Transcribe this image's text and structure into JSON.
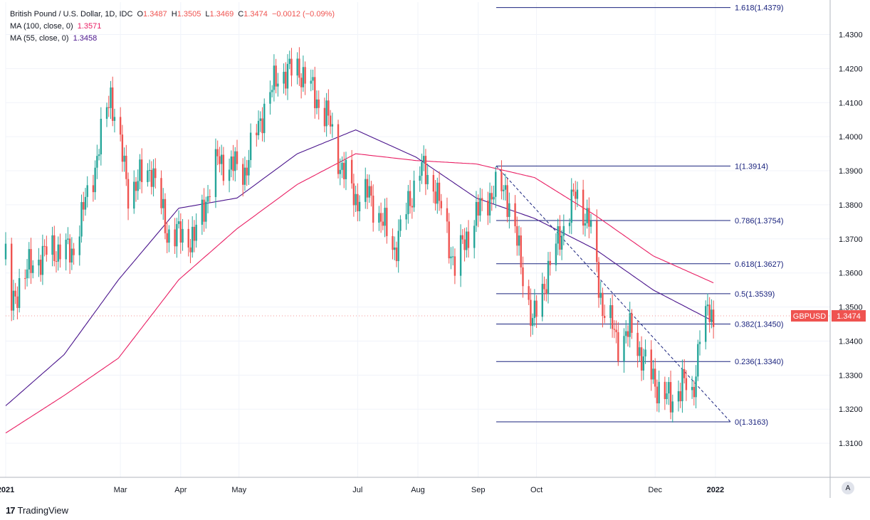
{
  "legend": {
    "symbol": "British Pound / U.S. Dollar, 1D, IDC",
    "o_label": "O",
    "o": "1.3487",
    "h_label": "H",
    "h": "1.3505",
    "l_label": "L",
    "l": "1.3469",
    "c_label": "C",
    "c": "1.3474",
    "change": "−0.0012 (−0.09%)",
    "ma100_label": "MA (100, close, 0)",
    "ma100_value": "1.3571",
    "ma55_label": "MA (55, close, 0)",
    "ma55_value": "1.3458"
  },
  "price_tag": {
    "symbol": "GBPUSD",
    "value": "1.3474"
  },
  "footer": {
    "logo": "17",
    "brand": "TradingView"
  },
  "auto_button": "A",
  "colors": {
    "up": "#26a69a",
    "down": "#ef5350",
    "ma100": "#e91e63",
    "ma55": "#4a148c",
    "fib": "#1a237e",
    "grid": "#f0f3fa",
    "axis_text": "#131722"
  },
  "chart_data": {
    "type": "candlestick",
    "title": "British Pound / U.S. Dollar, 1D, IDC",
    "ylim": [
      1.3,
      1.4395
    ],
    "y_ticks": [
      "1.3100",
      "1.3200",
      "1.3300",
      "1.3400",
      "1.3500",
      "1.3600",
      "1.3700",
      "1.3800",
      "1.3900",
      "1.4000",
      "1.4100",
      "1.4200",
      "1.4300"
    ],
    "x_ticks": [
      {
        "label": "2021",
        "date": "2021-01-01",
        "bold": true
      },
      {
        "label": "Mar",
        "date": "2021-03-01"
      },
      {
        "label": "Apr",
        "date": "2021-04-01"
      },
      {
        "label": "May",
        "date": "2021-05-01"
      },
      {
        "label": "Jul",
        "date": "2021-07-01"
      },
      {
        "label": "Aug",
        "date": "2021-08-01"
      },
      {
        "label": "Sep",
        "date": "2021-09-01"
      },
      {
        "label": "Oct",
        "date": "2021-10-01"
      },
      {
        "label": "Dec",
        "date": "2021-12-01"
      },
      {
        "label": "2022",
        "date": "2022-01-01",
        "bold": true
      }
    ],
    "x_range": [
      "2021-01-01",
      "2022-03-01"
    ],
    "close_anchors": [
      {
        "date": "2021-01-01",
        "close": 1.364
      },
      {
        "date": "2021-01-04",
        "close": 1.35
      },
      {
        "date": "2021-01-08",
        "close": 1.357
      },
      {
        "date": "2021-01-15",
        "close": 1.363
      },
      {
        "date": "2021-01-25",
        "close": 1.367
      },
      {
        "date": "2021-02-04",
        "close": 1.366
      },
      {
        "date": "2021-02-15",
        "close": 1.389
      },
      {
        "date": "2021-02-24",
        "close": 1.413
      },
      {
        "date": "2021-03-05",
        "close": 1.384
      },
      {
        "date": "2021-03-17",
        "close": 1.391
      },
      {
        "date": "2021-03-25",
        "close": 1.372
      },
      {
        "date": "2021-04-08",
        "close": 1.37
      },
      {
        "date": "2021-04-20",
        "close": 1.393
      },
      {
        "date": "2021-05-04",
        "close": 1.39
      },
      {
        "date": "2021-05-13",
        "close": 1.407
      },
      {
        "date": "2021-05-21",
        "close": 1.418
      },
      {
        "date": "2021-06-01",
        "close": 1.42
      },
      {
        "date": "2021-06-10",
        "close": 1.411
      },
      {
        "date": "2021-06-16",
        "close": 1.405
      },
      {
        "date": "2021-06-22",
        "close": 1.392
      },
      {
        "date": "2021-06-30",
        "close": 1.382
      },
      {
        "date": "2021-07-07",
        "close": 1.383
      },
      {
        "date": "2021-07-20",
        "close": 1.367
      },
      {
        "date": "2021-08-02",
        "close": 1.391
      },
      {
        "date": "2021-08-10",
        "close": 1.385
      },
      {
        "date": "2021-08-20",
        "close": 1.362
      },
      {
        "date": "2021-08-30",
        "close": 1.376
      },
      {
        "date": "2021-09-07",
        "close": 1.383
      },
      {
        "date": "2021-09-15",
        "close": 1.385
      },
      {
        "date": "2021-09-22",
        "close": 1.366
      },
      {
        "date": "2021-09-29",
        "close": 1.345
      },
      {
        "date": "2021-10-06",
        "close": 1.359
      },
      {
        "date": "2021-10-15",
        "close": 1.374
      },
      {
        "date": "2021-10-21",
        "close": 1.383
      },
      {
        "date": "2021-10-28",
        "close": 1.375
      },
      {
        "date": "2021-11-04",
        "close": 1.35
      },
      {
        "date": "2021-11-12",
        "close": 1.34
      },
      {
        "date": "2021-11-19",
        "close": 1.343
      },
      {
        "date": "2021-11-26",
        "close": 1.333
      },
      {
        "date": "2021-12-03",
        "close": 1.326
      },
      {
        "date": "2021-12-09",
        "close": 1.322
      },
      {
        "date": "2021-12-15",
        "close": 1.328
      },
      {
        "date": "2021-12-20",
        "close": 1.323
      },
      {
        "date": "2021-12-24",
        "close": 1.342
      },
      {
        "date": "2021-12-29",
        "close": 1.349
      },
      {
        "date": "2021-12-31",
        "close": 1.3474
      }
    ],
    "ma55_anchors": [
      {
        "date": "2021-01-01",
        "v": 1.321
      },
      {
        "date": "2021-01-31",
        "v": 1.336
      },
      {
        "date": "2021-02-28",
        "v": 1.358
      },
      {
        "date": "2021-03-31",
        "v": 1.379
      },
      {
        "date": "2021-04-30",
        "v": 1.382
      },
      {
        "date": "2021-05-31",
        "v": 1.395
      },
      {
        "date": "2021-06-30",
        "v": 1.402
      },
      {
        "date": "2021-07-31",
        "v": 1.394
      },
      {
        "date": "2021-08-31",
        "v": 1.382
      },
      {
        "date": "2021-09-30",
        "v": 1.376
      },
      {
        "date": "2021-10-31",
        "v": 1.367
      },
      {
        "date": "2021-11-30",
        "v": 1.355
      },
      {
        "date": "2021-12-31",
        "v": 1.3458
      }
    ],
    "ma100_anchors": [
      {
        "date": "2021-01-01",
        "v": 1.313
      },
      {
        "date": "2021-01-31",
        "v": 1.324
      },
      {
        "date": "2021-02-28",
        "v": 1.335
      },
      {
        "date": "2021-03-31",
        "v": 1.358
      },
      {
        "date": "2021-04-30",
        "v": 1.373
      },
      {
        "date": "2021-05-31",
        "v": 1.386
      },
      {
        "date": "2021-06-30",
        "v": 1.395
      },
      {
        "date": "2021-07-31",
        "v": 1.393
      },
      {
        "date": "2021-08-31",
        "v": 1.392
      },
      {
        "date": "2021-09-30",
        "v": 1.388
      },
      {
        "date": "2021-10-31",
        "v": 1.377
      },
      {
        "date": "2021-11-30",
        "v": 1.365
      },
      {
        "date": "2021-12-31",
        "v": 1.3571
      }
    ],
    "fibonacci": {
      "start_date": "2021-09-05",
      "end_date": "2022-01-10",
      "levels": [
        {
          "label": "1.618(1.4379)",
          "value": 1.4379
        },
        {
          "label": "1(1.3914)",
          "value": 1.3914
        },
        {
          "label": "0.786(1.3754)",
          "value": 1.3754
        },
        {
          "label": "0.618(1.3627)",
          "value": 1.3627
        },
        {
          "label": "0.5(1.3539)",
          "value": 1.3539
        },
        {
          "label": "0.382(1.3450)",
          "value": 1.345
        },
        {
          "label": "0.236(1.3340)",
          "value": 1.334
        },
        {
          "label": "0(1.3163)",
          "value": 1.3163
        }
      ]
    },
    "trendline": {
      "from": {
        "date": "2021-09-05",
        "value": 1.3914
      },
      "to": {
        "date": "2022-01-10",
        "value": 1.3163
      }
    }
  }
}
